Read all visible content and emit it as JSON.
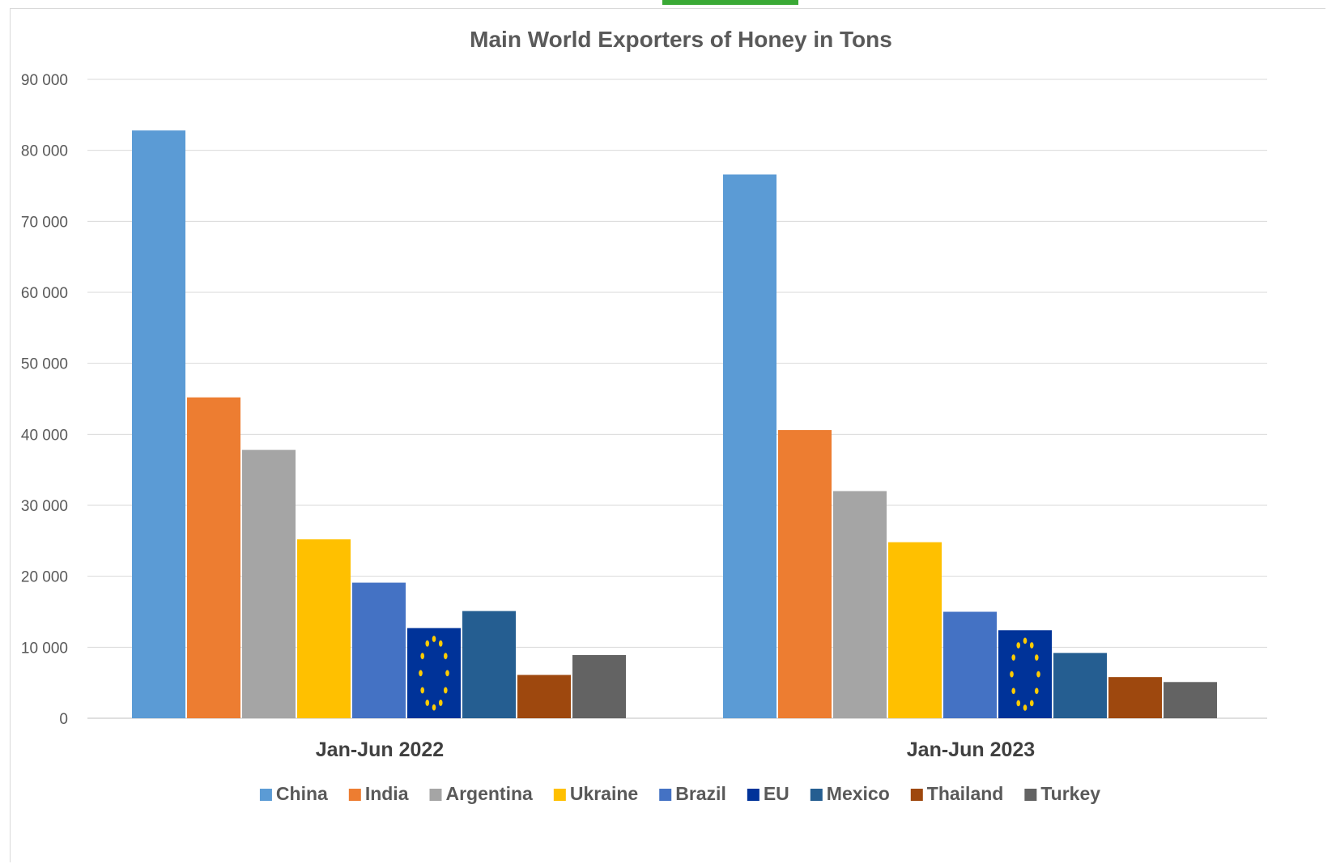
{
  "accent_color": "#3aa935",
  "chart_data": {
    "type": "bar",
    "title": "Main World Exporters of Honey in Tons",
    "xlabel": "",
    "ylabel": "",
    "categories": [
      "Jan-Jun 2022",
      "Jan-Jun 2023"
    ],
    "ylim": [
      0,
      90000
    ],
    "yticks": [
      0,
      10000,
      20000,
      30000,
      40000,
      50000,
      60000,
      70000,
      80000,
      90000
    ],
    "ytick_labels": [
      "0",
      "10 000",
      "20 000",
      "30 000",
      "40 000",
      "50 000",
      "60 000",
      "70 000",
      "80 000",
      "90 000"
    ],
    "grid": true,
    "legend": "bottom",
    "series": [
      {
        "name": "China",
        "color": "#5b9bd5",
        "values": [
          82800,
          76600
        ]
      },
      {
        "name": "India",
        "color": "#ed7d31",
        "values": [
          45200,
          40600
        ]
      },
      {
        "name": "Argentina",
        "color": "#a5a5a5",
        "values": [
          37800,
          32000
        ]
      },
      {
        "name": "Ukraine",
        "color": "#ffc000",
        "values": [
          25200,
          24800
        ]
      },
      {
        "name": "Brazil",
        "color": "#4472c4",
        "values": [
          19100,
          15000
        ]
      },
      {
        "name": "EU",
        "color": "#003399",
        "pattern": "eu-flag",
        "values": [
          12700,
          12400
        ]
      },
      {
        "name": "Mexico",
        "color": "#255e91",
        "values": [
          15100,
          9200
        ]
      },
      {
        "name": "Thailand",
        "color": "#9e480e",
        "values": [
          6100,
          5800
        ]
      },
      {
        "name": "Turkey",
        "color": "#636363",
        "values": [
          8900,
          5100
        ]
      }
    ]
  }
}
